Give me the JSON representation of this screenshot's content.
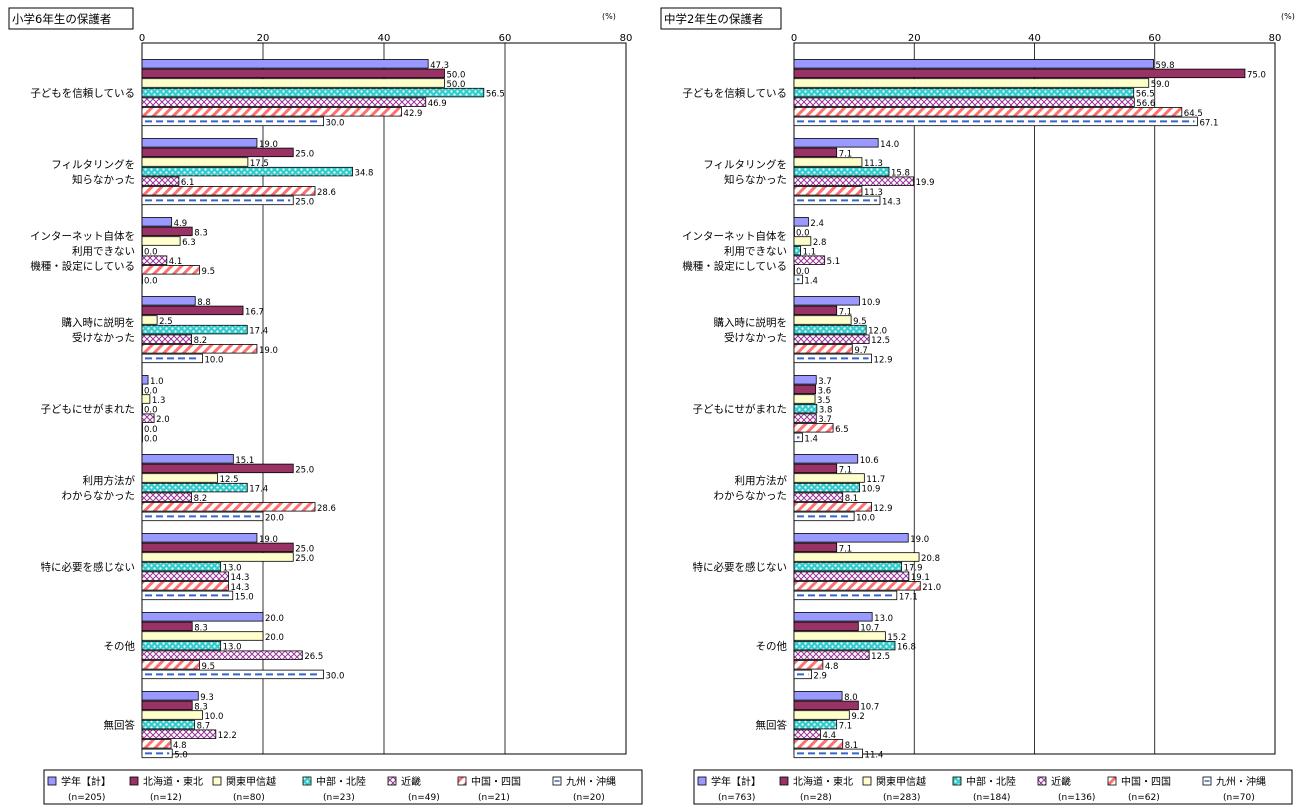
{
  "chart_data": [
    {
      "type": "bar",
      "orientation": "horizontal",
      "title": "小学6年生の保護者",
      "unit": "(%)",
      "xlim": [
        0,
        80
      ],
      "ticks": [
        0,
        20,
        40,
        60,
        80
      ],
      "grid": true,
      "legend_position": "bottom",
      "categories": [
        "子どもを信頼している",
        "フィルタリングを\n知らなかった",
        "インターネット自体を\n利用できない\n機種・設定にしている",
        "購入時に説明を\n受けなかった",
        "子どもにせがまれた",
        "利用方法が\nわからなかった",
        "特に必要を感じない",
        "その他",
        "無回答"
      ],
      "series": [
        {
          "name": "学年【計】",
          "n": "(n=205)",
          "values": [
            47.3,
            19.0,
            4.9,
            8.8,
            1.0,
            15.1,
            19.0,
            20.0,
            9.3
          ]
        },
        {
          "name": "北海道・東北",
          "n": "(n=12)",
          "values": [
            50.0,
            25.0,
            8.3,
            16.7,
            0.0,
            25.0,
            25.0,
            8.3,
            8.3
          ]
        },
        {
          "name": "関東甲信越",
          "n": "(n=80)",
          "values": [
            50.0,
            17.5,
            6.3,
            2.5,
            1.3,
            12.5,
            25.0,
            20.0,
            10.0
          ]
        },
        {
          "name": "中部・北陸",
          "n": "(n=23)",
          "values": [
            56.5,
            34.8,
            0.0,
            17.4,
            0.0,
            17.4,
            13.0,
            13.0,
            8.7
          ]
        },
        {
          "name": "近畿",
          "n": "(n=49)",
          "values": [
            46.9,
            6.1,
            4.1,
            8.2,
            2.0,
            8.2,
            14.3,
            26.5,
            12.2
          ]
        },
        {
          "name": "中国・四国",
          "n": "(n=21)",
          "values": [
            42.9,
            28.6,
            9.5,
            19.0,
            0.0,
            28.6,
            14.3,
            9.5,
            4.8
          ]
        },
        {
          "name": "九州・沖縄",
          "n": "(n=20)",
          "values": [
            30.0,
            25.0,
            0.0,
            10.0,
            0.0,
            20.0,
            15.0,
            30.0,
            5.0
          ]
        }
      ]
    },
    {
      "type": "bar",
      "orientation": "horizontal",
      "title": "中学2年生の保護者",
      "unit": "(%)",
      "xlim": [
        0,
        80
      ],
      "ticks": [
        0,
        20,
        40,
        60,
        80
      ],
      "grid": true,
      "legend_position": "bottom",
      "categories": [
        "子どもを信頼している",
        "フィルタリングを\n知らなかった",
        "インターネット自体を\n利用できない\n機種・設定にしている",
        "購入時に説明を\n受けなかった",
        "子どもにせがまれた",
        "利用方法が\nわからなかった",
        "特に必要を感じない",
        "その他",
        "無回答"
      ],
      "series": [
        {
          "name": "学年【計】",
          "n": "(n=763)",
          "values": [
            59.8,
            14.0,
            2.4,
            10.9,
            3.7,
            10.6,
            19.0,
            13.0,
            8.0
          ]
        },
        {
          "name": "北海道・東北",
          "n": "(n=28)",
          "values": [
            75.0,
            7.1,
            0.0,
            7.1,
            3.6,
            7.1,
            7.1,
            10.7,
            10.7
          ]
        },
        {
          "name": "関東甲信越",
          "n": "(n=283)",
          "values": [
            59.0,
            11.3,
            2.8,
            9.5,
            3.5,
            11.7,
            20.8,
            15.2,
            9.2
          ]
        },
        {
          "name": "中部・北陸",
          "n": "(n=184)",
          "values": [
            56.5,
            15.8,
            1.1,
            12.0,
            3.8,
            10.9,
            17.9,
            16.8,
            7.1
          ]
        },
        {
          "name": "近畿",
          "n": "(n=136)",
          "values": [
            56.6,
            19.9,
            5.1,
            12.5,
            3.7,
            8.1,
            19.1,
            12.5,
            4.4
          ]
        },
        {
          "name": "中国・四国",
          "n": "(n=62)",
          "values": [
            64.5,
            11.3,
            0.0,
            9.7,
            6.5,
            12.9,
            21.0,
            4.8,
            8.1
          ]
        },
        {
          "name": "九州・沖縄",
          "n": "(n=70)",
          "values": [
            67.1,
            14.3,
            1.4,
            12.9,
            1.4,
            10.0,
            17.1,
            2.9,
            11.4
          ]
        }
      ]
    }
  ],
  "series_colors": [
    "#9999ff",
    "#993366",
    "#ffffcc",
    "#33cccc",
    "#cc99cc",
    "#ff8080",
    "#ffffff"
  ],
  "series_patterns": [
    "solid",
    "solid",
    "solid",
    "dots",
    "crosshatch",
    "diagonal",
    "dashed"
  ]
}
